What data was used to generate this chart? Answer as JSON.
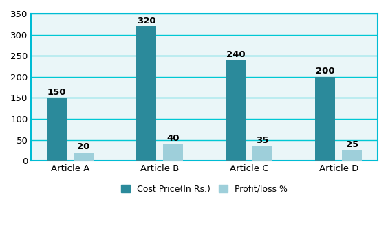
{
  "categories": [
    "Article A",
    "Article B",
    "Article C",
    "Article D"
  ],
  "cost_price": [
    150,
    320,
    240,
    200
  ],
  "profit_loss": [
    20,
    40,
    35,
    25
  ],
  "cost_color": "#2b8a9b",
  "profit_color": "#9ecfda",
  "ylabel_ticks": [
    0,
    50,
    100,
    150,
    200,
    250,
    300,
    350
  ],
  "ylim": [
    0,
    350
  ],
  "legend_cost": "Cost Price(In Rs.)",
  "legend_profit": "Profit/loss %",
  "bar_width": 0.22,
  "bar_gap": 0.08,
  "grid_color": "#00c8d4",
  "background_color": "#ffffff",
  "plot_bg_color": "#eaf6f8",
  "spine_color": "#00bcd4",
  "tick_fontsize": 9.5,
  "label_fontsize": 9.5,
  "legend_fontsize": 9
}
